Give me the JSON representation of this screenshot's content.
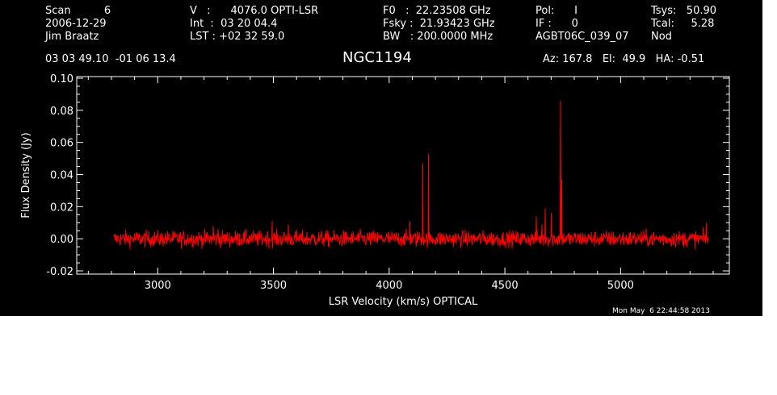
{
  "header": {
    "col1": [
      "Scan          6",
      "2006-12-29",
      "Jim Braatz"
    ],
    "col2": [
      "V   :      4076.0 OPTI-LSR",
      "Int  :  03 20 04.4",
      "LST : +02 32 59.0"
    ],
    "col3": [
      "F0   :  22.23508 GHz",
      "Fsky :  21.93423 GHz",
      "BW   : 200.0000 MHz"
    ],
    "col4": [
      "Pol:      I",
      "IF :      0",
      "AGBT06C_039_07"
    ],
    "col5": [
      "Tsys:   50.90",
      "Tcal:     5.28",
      "Nod"
    ],
    "coords": "03 03 49.10  -01 06 13.4",
    "source": "NGC1194",
    "azel": "Az: 167.8   El:  49.9   HA: -0.51"
  },
  "timestamp": "Mon May  6 22:44:58 2013",
  "colors": {
    "background": "#000000",
    "axes": "#ffffff",
    "spectrum": "#ff0000"
  },
  "chart_data": {
    "type": "line",
    "title": "NGC1194",
    "xlabel": "LSR Velocity (km/s) OPTICAL",
    "ylabel": "Flux Density (Jy)",
    "xlim": [
      2650,
      5470
    ],
    "ylim": [
      -0.022,
      0.101
    ],
    "xticks": [
      3000,
      3500,
      4000,
      4500,
      5000
    ],
    "xtick_labels": [
      "3000",
      "3500",
      "4000",
      "4500",
      "5000"
    ],
    "yticks": [
      -0.02,
      0.0,
      0.02,
      0.04,
      0.06,
      0.08,
      0.1
    ],
    "ytick_labels": [
      "-0.02",
      "0.00",
      "0.02",
      "0.04",
      "0.06",
      "0.08",
      "0.10"
    ],
    "grid": false,
    "series": [
      {
        "color": "#ff0000",
        "x_range": [
          2810,
          5380
        ],
        "noise_rms": 0.0025,
        "continuum": 0.0,
        "features": [
          {
            "x": 3240,
            "y": 0.008
          },
          {
            "x": 3260,
            "y": 0.006
          },
          {
            "x": 3495,
            "y": 0.011
          },
          {
            "x": 3565,
            "y": 0.009
          },
          {
            "x": 4090,
            "y": 0.011
          },
          {
            "x": 4145,
            "y": 0.047
          },
          {
            "x": 4170,
            "y": 0.053
          },
          {
            "x": 4635,
            "y": 0.014
          },
          {
            "x": 4660,
            "y": 0.009
          },
          {
            "x": 4675,
            "y": 0.019
          },
          {
            "x": 4700,
            "y": 0.016
          },
          {
            "x": 4740,
            "y": 0.086
          },
          {
            "x": 4745,
            "y": 0.037
          },
          {
            "x": 5370,
            "y": 0.01
          }
        ]
      }
    ]
  }
}
